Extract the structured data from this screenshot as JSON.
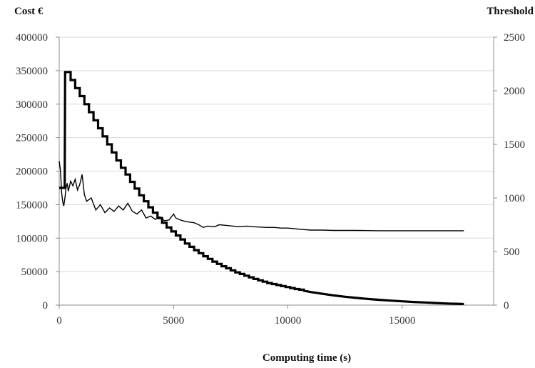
{
  "chart_data": {
    "type": "line",
    "xlabel": "Computing time (s)",
    "ylabel_left": "Cost €",
    "ylabel_right": "Threshold",
    "xlim": [
      0,
      19000
    ],
    "ylim_left": [
      0,
      400000
    ],
    "ylim_right": [
      0,
      2500
    ],
    "x_ticks": [
      0,
      5000,
      10000,
      15000
    ],
    "y_left_ticks": [
      0,
      50000,
      100000,
      150000,
      200000,
      250000,
      300000,
      350000,
      400000
    ],
    "y_right_ticks": [
      0,
      500,
      1000,
      1500,
      2000,
      2500
    ],
    "grid": "horizontal",
    "legend": "none",
    "series": [
      {
        "axis": "left",
        "style": "stepped-thick",
        "x": [
          0,
          150,
          240,
          260,
          500,
          500,
          700,
          700,
          900,
          900,
          1100,
          1100,
          1300,
          1300,
          1500,
          1500,
          1700,
          1700,
          1900,
          1900,
          2100,
          2100,
          2300,
          2300,
          2500,
          2500,
          2700,
          2700,
          2900,
          2900,
          3100,
          3100,
          3300,
          3300,
          3500,
          3500,
          3700,
          3700,
          3900,
          3900,
          4100,
          4100,
          4300,
          4300,
          4500,
          4500,
          4700,
          4700,
          4900,
          4900,
          5100,
          5100,
          5300,
          5300,
          5500,
          5500,
          5700,
          5700,
          5900,
          5900,
          6100,
          6100,
          6300,
          6300,
          6500,
          6500,
          6700,
          6700,
          6900,
          6900,
          7100,
          7100,
          7300,
          7300,
          7500,
          7500,
          7700,
          7700,
          7900,
          7900,
          8100,
          8100,
          8300,
          8300,
          8500,
          8500,
          8700,
          8700,
          8900,
          8900,
          9100,
          9100,
          9300,
          9300,
          9500,
          9500,
          9700,
          9700,
          9900,
          9900,
          10100,
          10100,
          10300,
          10300,
          10500,
          10500,
          10700,
          10700,
          11000,
          11500,
          12000,
          12500,
          13000,
          13500,
          14000,
          14500,
          15000,
          15500,
          16000,
          16500,
          17000,
          17700
        ],
        "y": [
          175000,
          175000,
          175000,
          348000,
          348000,
          336000,
          336000,
          324000,
          324000,
          312000,
          312000,
          300000,
          300000,
          288000,
          288000,
          276000,
          276000,
          264000,
          264000,
          252000,
          252000,
          240000,
          240000,
          228000,
          228000,
          216000,
          216000,
          205000,
          205000,
          195000,
          195000,
          184000,
          184000,
          174000,
          174000,
          164000,
          164000,
          155000,
          155000,
          146000,
          146000,
          138000,
          138000,
          130000,
          130000,
          123000,
          123000,
          116000,
          116000,
          110000,
          110000,
          104000,
          104000,
          98000,
          98000,
          92000,
          92000,
          87000,
          87000,
          82000,
          82000,
          77500,
          77500,
          73000,
          73000,
          69000,
          69000,
          65000,
          65000,
          61500,
          61500,
          58000,
          58000,
          55000,
          55000,
          52000,
          52000,
          49000,
          49000,
          46500,
          46500,
          44000,
          44000,
          41500,
          41500,
          39000,
          39000,
          37000,
          37000,
          35000,
          35000,
          33000,
          33000,
          31500,
          31500,
          30000,
          30000,
          28500,
          28500,
          27000,
          27000,
          25500,
          25500,
          24000,
          24000,
          23000,
          23000,
          21500,
          19500,
          17000,
          14500,
          12500,
          10800,
          9200,
          7900,
          6700,
          5700,
          4700,
          3900,
          3100,
          2300,
          1600
        ]
      },
      {
        "axis": "left",
        "style": "noisy-thin",
        "x": [
          0,
          60,
          100,
          150,
          200,
          250,
          300,
          350,
          400,
          500,
          600,
          700,
          800,
          900,
          1000,
          1100,
          1200,
          1400,
          1600,
          1800,
          2000,
          2200,
          2400,
          2600,
          2800,
          3000,
          3200,
          3400,
          3600,
          3800,
          4000,
          4200,
          4400,
          4600,
          4800,
          5000,
          5100,
          5300,
          5500,
          5700,
          5900,
          6100,
          6300,
          6500,
          6800,
          7000,
          7300,
          7600,
          7900,
          8200,
          8500,
          8800,
          9100,
          9400,
          9700,
          10000,
          10300,
          10600,
          11000,
          11500,
          12000,
          13000,
          14000,
          15000,
          16000,
          17000,
          17700
        ],
        "y": [
          215000,
          200000,
          170000,
          155000,
          148000,
          160000,
          175000,
          182000,
          170000,
          185000,
          178000,
          188000,
          172000,
          180000,
          195000,
          165000,
          155000,
          160000,
          142000,
          150000,
          138000,
          145000,
          140000,
          148000,
          142000,
          152000,
          140000,
          136000,
          142000,
          130000,
          133000,
          128000,
          132000,
          126000,
          127000,
          136000,
          130000,
          127000,
          125000,
          124000,
          123000,
          120000,
          116000,
          118000,
          117000,
          120000,
          119000,
          118000,
          117000,
          118000,
          117000,
          116500,
          116000,
          116000,
          115000,
          115000,
          114000,
          113000,
          112000,
          112000,
          111500,
          111500,
          111000,
          111000,
          111000,
          111000,
          111000
        ]
      }
    ]
  }
}
